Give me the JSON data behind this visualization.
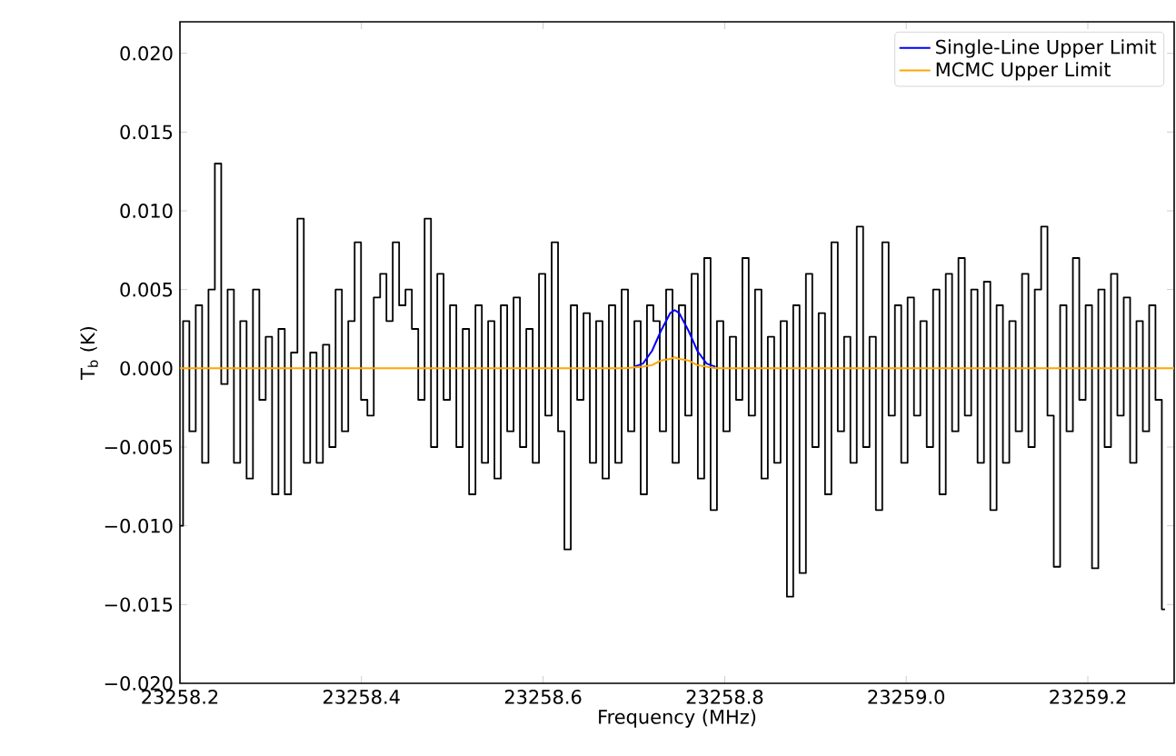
{
  "chart_data": {
    "type": "line",
    "xlabel": "Frequency (MHz)",
    "ylabel": "T$_{b}$ (K)",
    "xlim": [
      23258.2,
      23259.295
    ],
    "ylim": [
      -0.02,
      0.022
    ],
    "xticks": [
      23258.2,
      23258.4,
      23258.6,
      23258.8,
      {
        "value": 23259.0,
        "label": "23259.0"
      },
      23259.2
    ],
    "yticks": [
      {
        "value": -0.02,
        "label": "−0.020"
      },
      {
        "value": -0.015,
        "label": "−0.015"
      },
      {
        "value": -0.01,
        "label": "−0.010"
      },
      {
        "value": -0.005,
        "label": "−0.005"
      },
      {
        "value": 0,
        "label": "0.000"
      },
      {
        "value": 0.005,
        "label": "0.005"
      },
      {
        "value": 0.01,
        "label": "0.010"
      },
      {
        "value": 0.015,
        "label": "0.015"
      },
      {
        "value": 0.02,
        "label": "0.020"
      }
    ],
    "grid": false,
    "legend": "top right",
    "marker": "none",
    "line_style": "solid",
    "series": [
      {
        "type": "step",
        "color": "#000000",
        "x": [
          23258.2,
          23258.207,
          23258.214,
          23258.221,
          23258.228,
          23258.235,
          23258.242,
          23258.249,
          23258.256,
          23258.263,
          23258.27,
          23258.277,
          23258.284,
          23258.291,
          23258.298,
          23258.305,
          23258.312,
          23258.319,
          23258.326,
          23258.333,
          23258.34,
          23258.347,
          23258.354,
          23258.361,
          23258.368,
          23258.375,
          23258.382,
          23258.389,
          23258.396,
          23258.403,
          23258.41,
          23258.417,
          23258.424,
          23258.431,
          23258.438,
          23258.445,
          23258.452,
          23258.459,
          23258.466,
          23258.473,
          23258.48,
          23258.487,
          23258.494,
          23258.501,
          23258.508,
          23258.515,
          23258.522,
          23258.529,
          23258.536,
          23258.543,
          23258.55,
          23258.557,
          23258.564,
          23258.571,
          23258.578,
          23258.585,
          23258.592,
          23258.599,
          23258.606,
          23258.613,
          23258.62,
          23258.627,
          23258.634,
          23258.641,
          23258.648,
          23258.655,
          23258.662,
          23258.669,
          23258.676,
          23258.683,
          23258.69,
          23258.697,
          23258.704,
          23258.711,
          23258.718,
          23258.725,
          23258.732,
          23258.739,
          23258.746,
          23258.753,
          23258.76,
          23258.767,
          23258.774,
          23258.781,
          23258.788,
          23258.795,
          23258.802,
          23258.809,
          23258.816,
          23258.823,
          23258.83,
          23258.837,
          23258.844,
          23258.851,
          23258.858,
          23258.865,
          23258.872,
          23258.879,
          23258.886,
          23258.893,
          23258.9,
          23258.907,
          23258.914,
          23258.921,
          23258.928,
          23258.935,
          23258.942,
          23258.949,
          23258.956,
          23258.963,
          23258.97,
          23258.977,
          23258.984,
          23258.991,
          23258.998,
          23259.005,
          23259.012,
          23259.019,
          23259.026,
          23259.033,
          23259.04,
          23259.047,
          23259.054,
          23259.061,
          23259.068,
          23259.075,
          23259.082,
          23259.089,
          23259.096,
          23259.103,
          23259.11,
          23259.117,
          23259.124,
          23259.131,
          23259.138,
          23259.145,
          23259.152,
          23259.159,
          23259.166,
          23259.173,
          23259.18,
          23259.187,
          23259.194,
          23259.201,
          23259.208,
          23259.215,
          23259.222,
          23259.229,
          23259.236,
          23259.243,
          23259.25,
          23259.257,
          23259.264,
          23259.271,
          23259.278,
          23259.285
        ],
        "values": [
          -0.01,
          0.003,
          -0.004,
          0.004,
          -0.006,
          0.005,
          0.013,
          -0.001,
          0.005,
          -0.006,
          0.003,
          -0.007,
          0.005,
          -0.002,
          0.002,
          -0.008,
          0.0025,
          -0.008,
          0.001,
          0.0095,
          -0.006,
          0.001,
          -0.006,
          0.0015,
          -0.005,
          0.005,
          -0.004,
          0.003,
          0.008,
          -0.002,
          -0.003,
          0.0045,
          0.006,
          0.003,
          0.008,
          0.004,
          0.005,
          0.0025,
          -0.002,
          0.0095,
          -0.005,
          0.006,
          -0.002,
          0.004,
          -0.005,
          0.0025,
          -0.008,
          0.004,
          -0.006,
          0.003,
          -0.007,
          0.004,
          -0.004,
          0.0045,
          -0.005,
          0.0025,
          -0.006,
          0.006,
          -0.003,
          0.008,
          -0.004,
          -0.0115,
          0.004,
          -0.002,
          0.0035,
          -0.006,
          0.003,
          -0.007,
          0.004,
          -0.006,
          0.005,
          -0.004,
          0.003,
          -0.008,
          0.004,
          0.003,
          -0.004,
          0.005,
          -0.006,
          0.004,
          -0.003,
          0.006,
          -0.007,
          0.007,
          -0.009,
          0.003,
          -0.004,
          0.002,
          -0.002,
          0.007,
          -0.003,
          0.005,
          -0.007,
          0.002,
          -0.006,
          0.003,
          -0.0145,
          0.004,
          -0.013,
          0.006,
          -0.005,
          0.0035,
          -0.008,
          0.008,
          -0.004,
          0.002,
          -0.006,
          0.009,
          -0.005,
          0.002,
          -0.009,
          0.008,
          -0.003,
          0.004,
          -0.006,
          0.0045,
          -0.003,
          0.003,
          -0.005,
          0.005,
          -0.008,
          0.006,
          -0.004,
          0.007,
          -0.003,
          0.005,
          -0.006,
          0.0055,
          -0.009,
          0.004,
          -0.006,
          0.003,
          -0.004,
          0.006,
          -0.005,
          0.005,
          0.009,
          -0.003,
          -0.0126,
          0.004,
          -0.004,
          0.007,
          -0.002,
          0.004,
          -0.0127,
          0.005,
          -0.005,
          0.006,
          -0.003,
          0.0045,
          -0.006,
          0.003,
          -0.004,
          0.004,
          -0.002,
          -0.0153
        ]
      },
      {
        "name": "Single-Line Upper Limit",
        "color": "#0000ff",
        "x": [
          23258.7,
          23258.71,
          23258.72,
          23258.73,
          23258.74,
          23258.745,
          23258.75,
          23258.76,
          23258.77,
          23258.78,
          23258.79
        ],
        "values": [
          0.0001,
          0.0003,
          0.0011,
          0.0024,
          0.0035,
          0.0037,
          0.0035,
          0.0024,
          0.0011,
          0.0003,
          0.0001
        ]
      },
      {
        "name": "MCMC Upper Limit",
        "color": "#ffa500",
        "x": [
          23258.2,
          23258.69,
          23258.71,
          23258.72,
          23258.73,
          23258.74,
          23258.745,
          23258.75,
          23258.76,
          23258.77,
          23258.79,
          23258.8,
          23259.295
        ],
        "values": [
          0,
          0,
          0.0001,
          0.0002,
          0.0005,
          0.0006,
          0.0007,
          0.0006,
          0.0005,
          0.0002,
          0,
          0,
          0
        ]
      }
    ]
  }
}
